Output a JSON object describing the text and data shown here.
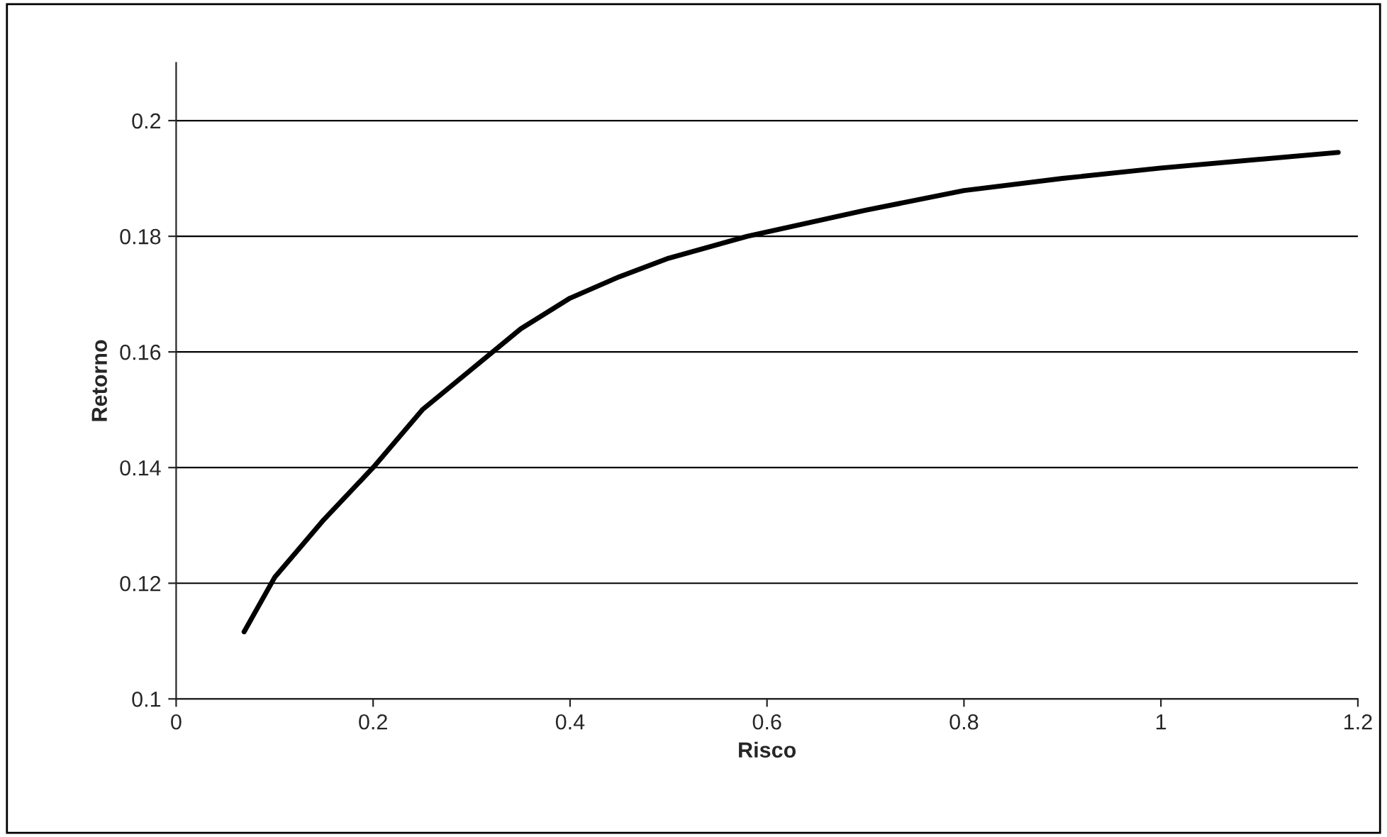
{
  "chart_data": {
    "type": "line",
    "xlabel": "Risco",
    "ylabel": "Retorno",
    "x": [
      0.069,
      0.1,
      0.15,
      0.2,
      0.25,
      0.3,
      0.35,
      0.4,
      0.45,
      0.5,
      0.58,
      0.7,
      0.8,
      0.9,
      1.0,
      1.18
    ],
    "series": [
      {
        "color": "#000000",
        "values": [
          0.1116,
          0.121,
          0.131,
          0.14,
          0.15,
          0.157,
          0.164,
          0.1693,
          0.173,
          0.1762,
          0.18,
          0.1845,
          0.1879,
          0.19,
          0.1918,
          0.1945
        ]
      }
    ],
    "xlim": [
      0,
      1.2
    ],
    "xticks": [
      0,
      0.2,
      0.4,
      0.6,
      0.8,
      1,
      1.2
    ],
    "ylim": [
      0.1,
      0.21
    ],
    "yticks": [
      0.1,
      0.12,
      0.14,
      0.16,
      0.18,
      0.2
    ],
    "grid": "y",
    "marker": "none",
    "line_style": "solid"
  }
}
